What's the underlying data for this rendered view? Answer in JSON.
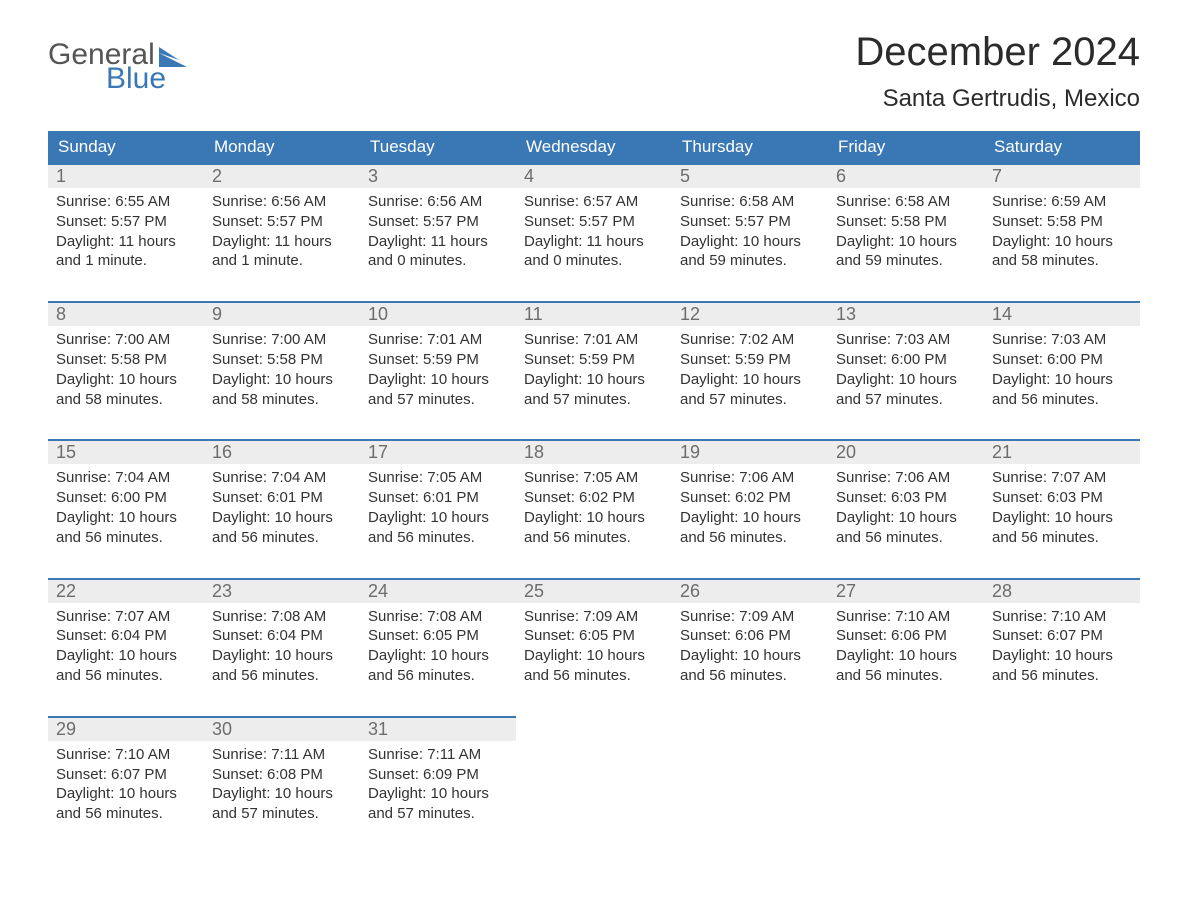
{
  "logo": {
    "word1": "General",
    "word2": "Blue",
    "accent_color": "#3a78b5"
  },
  "title": "December 2024",
  "location": "Santa Gertrudis, Mexico",
  "day_headers": [
    "Sunday",
    "Monday",
    "Tuesday",
    "Wednesday",
    "Thursday",
    "Friday",
    "Saturday"
  ],
  "colors": {
    "header_bg": "#3a78b5",
    "header_fg": "#ffffff",
    "daynum_bg": "#ededed",
    "daynum_fg": "#6d6d6d",
    "row_top_border": "#3a78b5",
    "text": "#333333",
    "background": "#ffffff"
  },
  "weeks": [
    [
      {
        "n": "1",
        "sunrise": "6:55 AM",
        "sunset": "5:57 PM",
        "dl": "11 hours and 1 minute."
      },
      {
        "n": "2",
        "sunrise": "6:56 AM",
        "sunset": "5:57 PM",
        "dl": "11 hours and 1 minute."
      },
      {
        "n": "3",
        "sunrise": "6:56 AM",
        "sunset": "5:57 PM",
        "dl": "11 hours and 0 minutes."
      },
      {
        "n": "4",
        "sunrise": "6:57 AM",
        "sunset": "5:57 PM",
        "dl": "11 hours and 0 minutes."
      },
      {
        "n": "5",
        "sunrise": "6:58 AM",
        "sunset": "5:57 PM",
        "dl": "10 hours and 59 minutes."
      },
      {
        "n": "6",
        "sunrise": "6:58 AM",
        "sunset": "5:58 PM",
        "dl": "10 hours and 59 minutes."
      },
      {
        "n": "7",
        "sunrise": "6:59 AM",
        "sunset": "5:58 PM",
        "dl": "10 hours and 58 minutes."
      }
    ],
    [
      {
        "n": "8",
        "sunrise": "7:00 AM",
        "sunset": "5:58 PM",
        "dl": "10 hours and 58 minutes."
      },
      {
        "n": "9",
        "sunrise": "7:00 AM",
        "sunset": "5:58 PM",
        "dl": "10 hours and 58 minutes."
      },
      {
        "n": "10",
        "sunrise": "7:01 AM",
        "sunset": "5:59 PM",
        "dl": "10 hours and 57 minutes."
      },
      {
        "n": "11",
        "sunrise": "7:01 AM",
        "sunset": "5:59 PM",
        "dl": "10 hours and 57 minutes."
      },
      {
        "n": "12",
        "sunrise": "7:02 AM",
        "sunset": "5:59 PM",
        "dl": "10 hours and 57 minutes."
      },
      {
        "n": "13",
        "sunrise": "7:03 AM",
        "sunset": "6:00 PM",
        "dl": "10 hours and 57 minutes."
      },
      {
        "n": "14",
        "sunrise": "7:03 AM",
        "sunset": "6:00 PM",
        "dl": "10 hours and 56 minutes."
      }
    ],
    [
      {
        "n": "15",
        "sunrise": "7:04 AM",
        "sunset": "6:00 PM",
        "dl": "10 hours and 56 minutes."
      },
      {
        "n": "16",
        "sunrise": "7:04 AM",
        "sunset": "6:01 PM",
        "dl": "10 hours and 56 minutes."
      },
      {
        "n": "17",
        "sunrise": "7:05 AM",
        "sunset": "6:01 PM",
        "dl": "10 hours and 56 minutes."
      },
      {
        "n": "18",
        "sunrise": "7:05 AM",
        "sunset": "6:02 PM",
        "dl": "10 hours and 56 minutes."
      },
      {
        "n": "19",
        "sunrise": "7:06 AM",
        "sunset": "6:02 PM",
        "dl": "10 hours and 56 minutes."
      },
      {
        "n": "20",
        "sunrise": "7:06 AM",
        "sunset": "6:03 PM",
        "dl": "10 hours and 56 minutes."
      },
      {
        "n": "21",
        "sunrise": "7:07 AM",
        "sunset": "6:03 PM",
        "dl": "10 hours and 56 minutes."
      }
    ],
    [
      {
        "n": "22",
        "sunrise": "7:07 AM",
        "sunset": "6:04 PM",
        "dl": "10 hours and 56 minutes."
      },
      {
        "n": "23",
        "sunrise": "7:08 AM",
        "sunset": "6:04 PM",
        "dl": "10 hours and 56 minutes."
      },
      {
        "n": "24",
        "sunrise": "7:08 AM",
        "sunset": "6:05 PM",
        "dl": "10 hours and 56 minutes."
      },
      {
        "n": "25",
        "sunrise": "7:09 AM",
        "sunset": "6:05 PM",
        "dl": "10 hours and 56 minutes."
      },
      {
        "n": "26",
        "sunrise": "7:09 AM",
        "sunset": "6:06 PM",
        "dl": "10 hours and 56 minutes."
      },
      {
        "n": "27",
        "sunrise": "7:10 AM",
        "sunset": "6:06 PM",
        "dl": "10 hours and 56 minutes."
      },
      {
        "n": "28",
        "sunrise": "7:10 AM",
        "sunset": "6:07 PM",
        "dl": "10 hours and 56 minutes."
      }
    ],
    [
      {
        "n": "29",
        "sunrise": "7:10 AM",
        "sunset": "6:07 PM",
        "dl": "10 hours and 56 minutes."
      },
      {
        "n": "30",
        "sunrise": "7:11 AM",
        "sunset": "6:08 PM",
        "dl": "10 hours and 57 minutes."
      },
      {
        "n": "31",
        "sunrise": "7:11 AM",
        "sunset": "6:09 PM",
        "dl": "10 hours and 57 minutes."
      },
      null,
      null,
      null,
      null
    ]
  ],
  "labels": {
    "sunrise": "Sunrise:",
    "sunset": "Sunset:",
    "daylight": "Daylight:"
  }
}
